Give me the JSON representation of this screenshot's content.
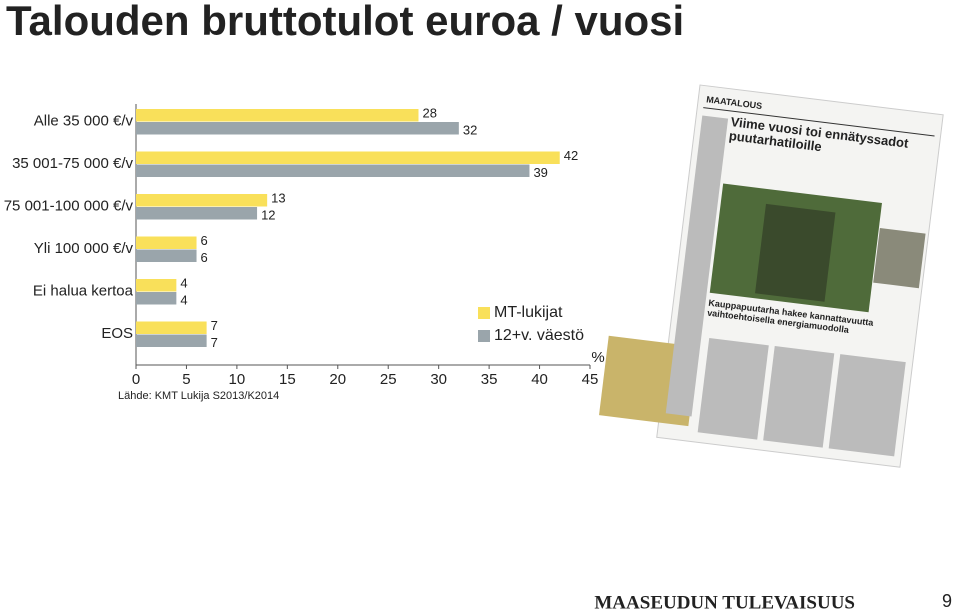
{
  "chart_data": {
    "type": "bar",
    "orientation": "horizontal",
    "title": "Talouden bruttotulot euroa / vuosi",
    "categories": [
      "Alle 35 000 €/v",
      "35 001-75 000 €/v",
      "75 001-100 000 €/v",
      "Yli 100 000 €/v",
      "Ei halua kertoa",
      "EOS"
    ],
    "series": [
      {
        "name": "MT-lukijat",
        "color": "#f9e05a",
        "values": [
          28,
          42,
          13,
          6,
          4,
          7
        ]
      },
      {
        "name": "12+v. väestö",
        "color": "#9aa5ab",
        "values": [
          32,
          39,
          12,
          6,
          4,
          7
        ]
      }
    ],
    "xlim": [
      0,
      45
    ],
    "xticks": [
      0,
      5,
      10,
      15,
      20,
      25,
      30,
      35,
      40,
      45
    ],
    "x_unit": "%",
    "source": "Lähde: KMT Lukija S2013/K2014",
    "legend": "right"
  },
  "newspaper": {
    "section": "MAATALOUS",
    "headline": "Viime vuosi toi ennätyssadot puutarhatiloille",
    "subheadline": "Kauppapuutarha hakee kannattavuutta vaihtoehtoisella energiamuodolla"
  },
  "footer": {
    "brand": "MAASEUDUN TULEVAISUUS",
    "page": "9"
  }
}
